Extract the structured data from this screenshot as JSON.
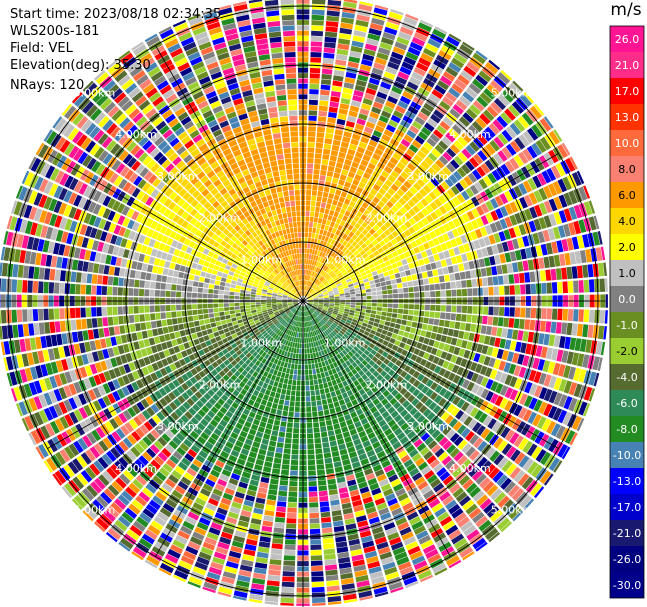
{
  "header": {
    "start_time": "Start time: 2023/08/18 02:34:35",
    "instrument": "WLS200s-181",
    "field": "Field: VEL",
    "elevation": "Elevation(deg): 35.30",
    "nrays": "NRays: 120"
  },
  "chart_data": {
    "type": "ppi",
    "field": "VEL",
    "units": "m/s",
    "elevation_deg": 35.3,
    "n_rays": 120,
    "range_rings_km": [
      1.0,
      2.0,
      3.0,
      4.0,
      5.0
    ],
    "range_ring_labels": [
      "1.00km",
      "2.00km",
      "3.00km",
      "4.00km",
      "5.00km"
    ],
    "colorbar": {
      "ticks": [
        26.0,
        21.0,
        17.0,
        13.0,
        10.0,
        8.0,
        6.0,
        4.0,
        2.0,
        1.0,
        0.0,
        -1.0,
        -2.0,
        -4.0,
        -6.0,
        -8.0,
        -10.0,
        -13.0,
        -17.0,
        -21.0,
        -26.0,
        -30.0
      ],
      "tick_labels": [
        "26.0",
        "21.0",
        "17.0",
        "13.0",
        "10.0",
        "8.0",
        "6.0",
        "4.0",
        "2.0",
        "1.0",
        "0.0",
        "-1.0",
        "-2.0",
        "-4.0",
        "-6.0",
        "-8.0",
        "-10.0",
        "-13.0",
        "-17.0",
        "-21.0",
        "-26.0",
        "-30.0"
      ],
      "colors": [
        "#ff1493",
        "#ff2d8a",
        "#ff0000",
        "#ff3300",
        "#ff6a3d",
        "#fa8072",
        "#ff9900",
        "#ffd700",
        "#ffff00",
        "#c0c0c0",
        "#808080",
        "#6b8e23",
        "#9acd32",
        "#556b2f",
        "#2e8b57",
        "#228b22",
        "#4682b4",
        "#0000ff",
        "#0000cd",
        "#191970",
        "#000080",
        "#00008b"
      ]
    },
    "velocity_pattern": "positive (receding) velocities ~2-8 m/s in the northern half, negative (approaching) velocities ~-2 to -8 m/s in the southern half, noise beyond ~3 km"
  }
}
